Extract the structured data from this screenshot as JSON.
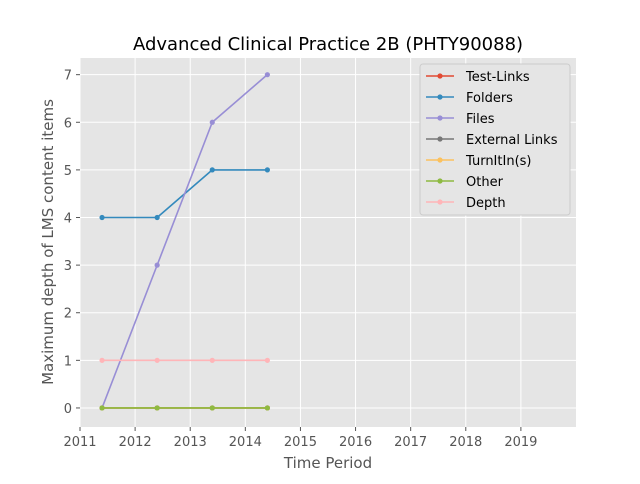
{
  "chart_data": {
    "type": "line",
    "title": "Advanced Clinical Practice 2B (PHTY90088)",
    "xlabel": "Time Period",
    "ylabel": "Maximum depth of LMS content items",
    "xlim": [
      2011,
      2020
    ],
    "ylim": [
      -0.4,
      7.35
    ],
    "xticks": [
      "2011",
      "2012",
      "2013",
      "2014",
      "2015",
      "2016",
      "2017",
      "2018",
      "2019"
    ],
    "yticks": [
      "0",
      "1",
      "2",
      "3",
      "4",
      "5",
      "6",
      "7"
    ],
    "grid": true,
    "legend_position": "top-right",
    "x": [
      2011.4,
      2012.4,
      2013.4,
      2014.4
    ],
    "series": [
      {
        "name": "Test-Links",
        "color": "#e24a33",
        "values": [
          0,
          0,
          0,
          0
        ]
      },
      {
        "name": "Folders",
        "color": "#348abd",
        "values": [
          4,
          4,
          5,
          5
        ]
      },
      {
        "name": "Files",
        "color": "#988ed5",
        "values": [
          0,
          3,
          6,
          7
        ]
      },
      {
        "name": "External Links",
        "color": "#777777",
        "values": [
          0,
          0,
          0,
          0
        ]
      },
      {
        "name": "TurnItIn(s)",
        "color": "#fbc15e",
        "values": [
          0,
          0,
          0,
          0
        ]
      },
      {
        "name": "Other",
        "color": "#8eba42",
        "values": [
          0,
          0,
          0,
          0
        ]
      },
      {
        "name": "Depth",
        "color": "#ffb5b8",
        "values": [
          1,
          1,
          1,
          1
        ]
      }
    ]
  }
}
